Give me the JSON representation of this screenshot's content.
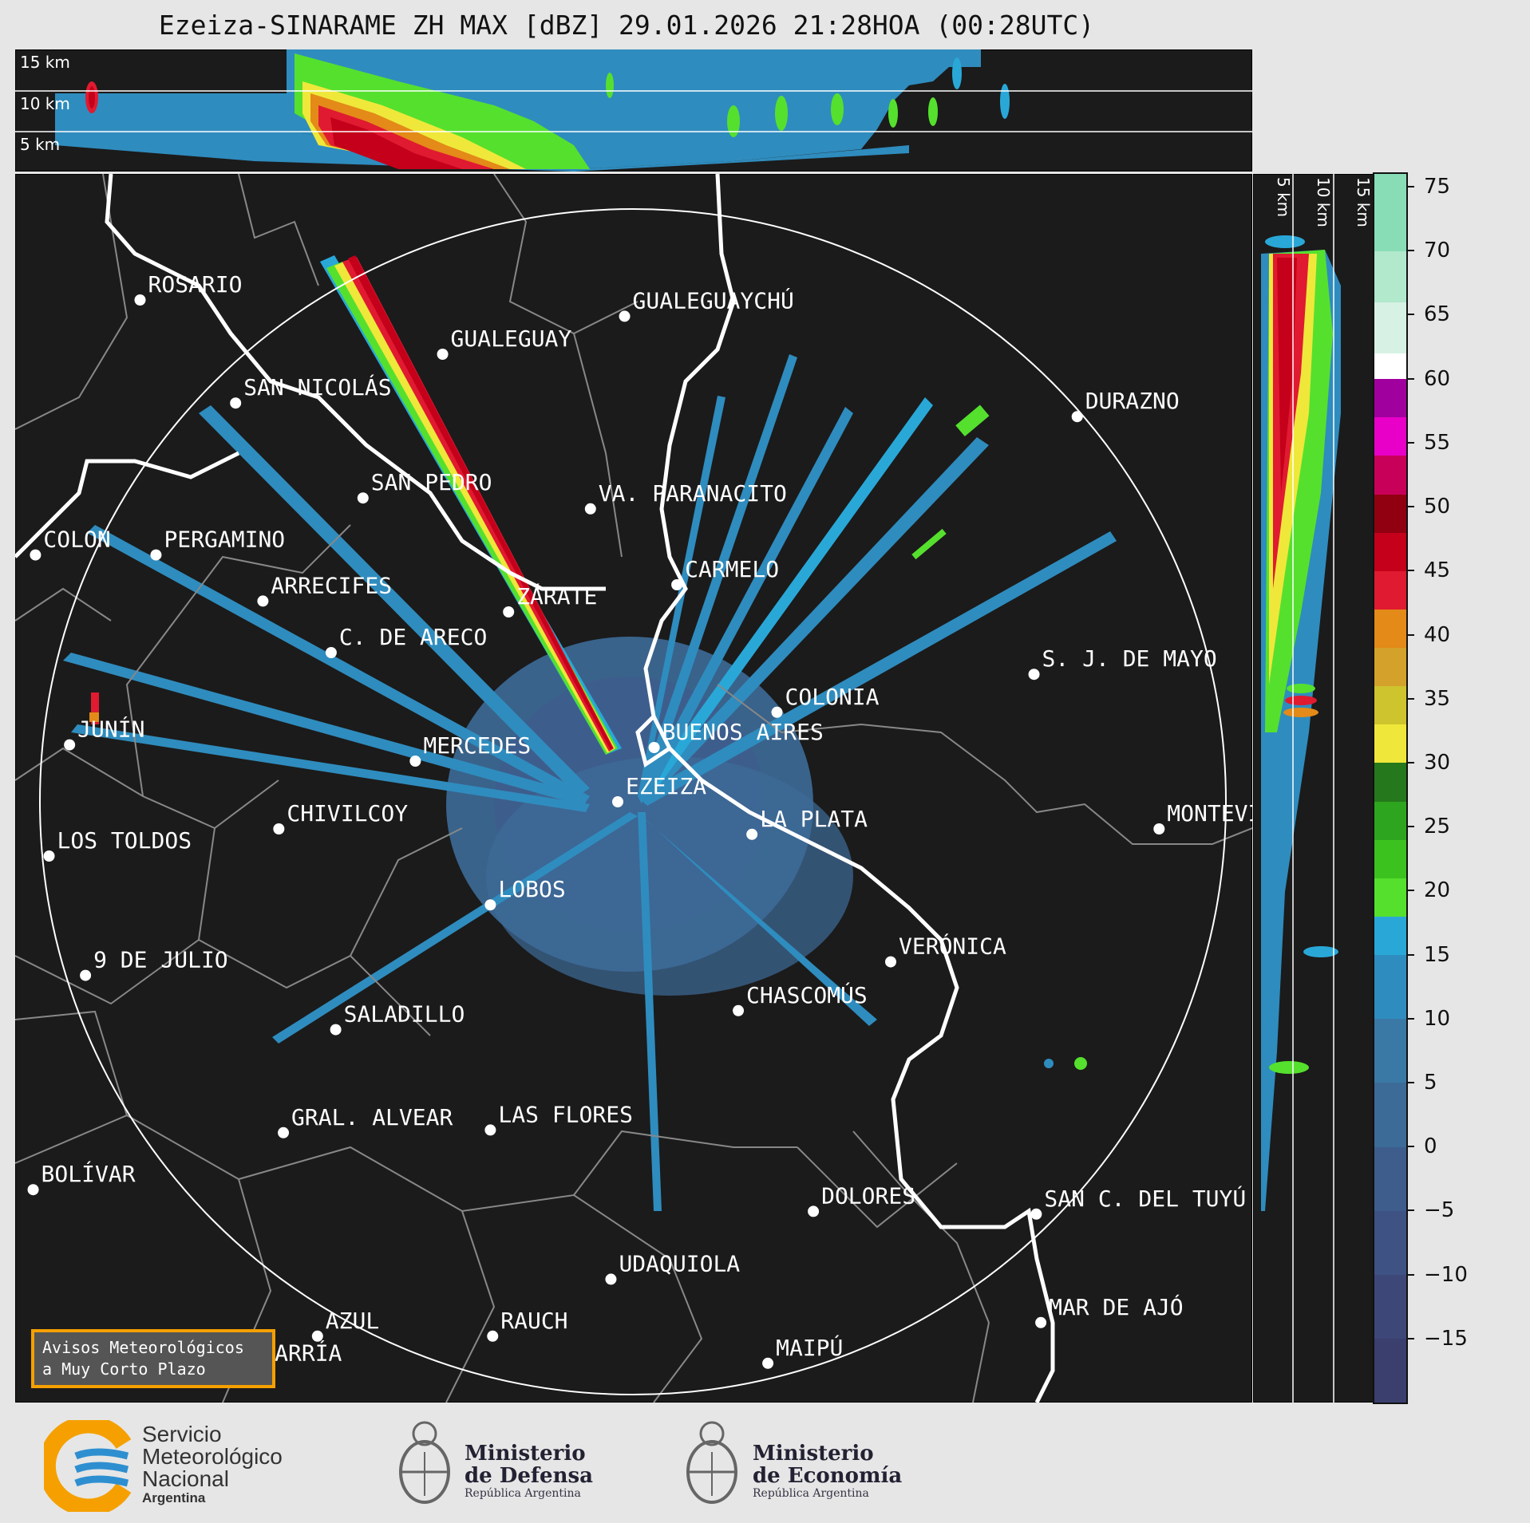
{
  "title": "Ezeiza-SINARAME ZH MAX [dBZ] 29.01.2026 21:28HOA (00:28UTC)",
  "xsection_top": {
    "height_labels": [
      "15 km",
      "10 km",
      "5 km"
    ]
  },
  "xsection_side": {
    "height_labels": [
      "5 km",
      "10 km",
      "15 km"
    ]
  },
  "map": {
    "radar_site": "EZEIZA",
    "cities": [
      {
        "name": "ROSARIO",
        "lon": -60.64,
        "lat": -32.95
      },
      {
        "name": "GUALEGUAYCHÚ",
        "lon": -58.51,
        "lat": -33.01
      },
      {
        "name": "GUALEGUAY",
        "lon": -59.31,
        "lat": -33.15
      },
      {
        "name": "SAN NICOLÁS",
        "lon": -60.22,
        "lat": -33.33
      },
      {
        "name": "DURAZNO",
        "lon": -56.52,
        "lat": -33.38
      },
      {
        "name": "SAN PEDRO",
        "lon": -59.66,
        "lat": -33.68
      },
      {
        "name": "VA. PARANACITO",
        "lon": -58.66,
        "lat": -33.72
      },
      {
        "name": "COLON",
        "lon": -61.1,
        "lat": -33.89
      },
      {
        "name": "PERGAMINO",
        "lon": -60.57,
        "lat": -33.89
      },
      {
        "name": "CARMELO",
        "lon": -58.28,
        "lat": -34.0
      },
      {
        "name": "ARRECIFES",
        "lon": -60.1,
        "lat": -34.06
      },
      {
        "name": "ZÁRATE",
        "lon": -59.02,
        "lat": -34.1
      },
      {
        "name": "S. J. DE MAYO",
        "lon": -56.71,
        "lat": -34.33
      },
      {
        "name": "C. DE ARECO",
        "lon": -59.8,
        "lat": -34.25
      },
      {
        "name": "COLONIA",
        "lon": -57.84,
        "lat": -34.47
      },
      {
        "name": "JUNÍN",
        "lon": -60.95,
        "lat": -34.59
      },
      {
        "name": "BUENOS AIRES",
        "lon": -58.38,
        "lat": -34.6
      },
      {
        "name": "MERCEDES",
        "lon": -59.43,
        "lat": -34.65
      },
      {
        "name": "EZEIZA",
        "lon": -58.54,
        "lat": -34.8
      },
      {
        "name": "MONTEVIDEO",
        "lon": -56.16,
        "lat": -34.9
      },
      {
        "name": "CHIVILCOY",
        "lon": -60.03,
        "lat": -34.9
      },
      {
        "name": "LA PLATA",
        "lon": -57.95,
        "lat": -34.92
      },
      {
        "name": "LOS TOLDOS",
        "lon": -61.04,
        "lat": -35.0
      },
      {
        "name": "LOBOS",
        "lon": -59.1,
        "lat": -35.18
      },
      {
        "name": "VERÓNICA",
        "lon": -57.34,
        "lat": -35.39
      },
      {
        "name": "9 DE JULIO",
        "lon": -60.88,
        "lat": -35.44
      },
      {
        "name": "CHASCOMÚS",
        "lon": -58.01,
        "lat": -35.57
      },
      {
        "name": "SALADILLO",
        "lon": -59.78,
        "lat": -35.64
      },
      {
        "name": "GRAL. ALVEAR",
        "lon": -60.01,
        "lat": -36.02
      },
      {
        "name": "LAS FLORES",
        "lon": -59.1,
        "lat": -36.01
      },
      {
        "name": "BOLÍVAR",
        "lon": -61.11,
        "lat": -36.23
      },
      {
        "name": "DOLORES",
        "lon": -57.68,
        "lat": -36.31
      },
      {
        "name": "SAN C. DEL TUYÚ",
        "lon": -56.7,
        "lat": -36.32
      },
      {
        "name": "UDAQUIOLA",
        "lon": -58.57,
        "lat": -36.56
      },
      {
        "name": "MAR DE AJÓ",
        "lon": -56.68,
        "lat": -36.72
      },
      {
        "name": "AZUL",
        "lon": -59.86,
        "lat": -36.77
      },
      {
        "name": "RAUCH",
        "lon": -59.09,
        "lat": -36.77
      },
      {
        "name": "OLAVARRÍA",
        "lon": -60.32,
        "lat": -36.89
      },
      {
        "name": "MAIPÚ",
        "lon": -57.88,
        "lat": -36.87
      }
    ]
  },
  "colorbar": {
    "unit": "dBZ",
    "ticks": [
      75,
      70,
      65,
      60,
      55,
      50,
      45,
      40,
      35,
      30,
      25,
      20,
      15,
      10,
      5,
      0,
      -5,
      -10,
      -15
    ],
    "tick_labels": [
      "75",
      "70",
      "65",
      "60",
      "55",
      "50",
      "45",
      "40",
      "35",
      "30",
      "25",
      "20",
      "15",
      "10",
      "5",
      "0",
      "−5",
      "−10",
      "−15"
    ],
    "vmin": -20,
    "vmax": 76,
    "bands": [
      {
        "from": -20,
        "to": -15,
        "color": "#3a3f6e"
      },
      {
        "from": -15,
        "to": -10,
        "color": "#3d4778"
      },
      {
        "from": -10,
        "to": -5,
        "color": "#3e5283"
      },
      {
        "from": -5,
        "to": 0,
        "color": "#3e5d8d"
      },
      {
        "from": 0,
        "to": 5,
        "color": "#3d6b98"
      },
      {
        "from": 5,
        "to": 10,
        "color": "#3a79a6"
      },
      {
        "from": 10,
        "to": 15,
        "color": "#2f8cbe"
      },
      {
        "from": 15,
        "to": 18,
        "color": "#29a8d8"
      },
      {
        "from": 18,
        "to": 21,
        "color": "#55e02e"
      },
      {
        "from": 21,
        "to": 24,
        "color": "#3cc21f"
      },
      {
        "from": 24,
        "to": 27,
        "color": "#2ea51f"
      },
      {
        "from": 27,
        "to": 30,
        "color": "#25781c"
      },
      {
        "from": 30,
        "to": 33,
        "color": "#efe83a"
      },
      {
        "from": 33,
        "to": 36,
        "color": "#cec42d"
      },
      {
        "from": 36,
        "to": 39,
        "color": "#d4a22a"
      },
      {
        "from": 39,
        "to": 42,
        "color": "#e38a18"
      },
      {
        "from": 42,
        "to": 45,
        "color": "#e01a30"
      },
      {
        "from": 45,
        "to": 48,
        "color": "#c4001a"
      },
      {
        "from": 48,
        "to": 51,
        "color": "#900010"
      },
      {
        "from": 51,
        "to": 54,
        "color": "#c8005a"
      },
      {
        "from": 54,
        "to": 57,
        "color": "#e800c8"
      },
      {
        "from": 57,
        "to": 60,
        "color": "#a0009e"
      },
      {
        "from": 60,
        "to": 62,
        "color": "#ffffff"
      },
      {
        "from": 62,
        "to": 66,
        "color": "#d7f2e4"
      },
      {
        "from": 66,
        "to": 70,
        "color": "#b2e8cc"
      },
      {
        "from": 70,
        "to": 76,
        "color": "#88ddb6"
      }
    ]
  },
  "aviso": {
    "line1": "Avisos Meteorológicos",
    "line2": "a Muy Corto Plazo"
  },
  "footer": {
    "smn": {
      "line1": "Servicio",
      "line2": "Meteorológico",
      "line3": "Nacional",
      "line4": "Argentina"
    },
    "defensa": {
      "line1": "Ministerio",
      "line2": "de Defensa",
      "line3": "República Argentina"
    },
    "economia": {
      "line1": "Ministerio",
      "line2": "de Economía",
      "line3": "República Argentina"
    },
    "colors": {
      "smn_blue": "#2e8fd0",
      "smn_orange": "#f5a000"
    }
  }
}
